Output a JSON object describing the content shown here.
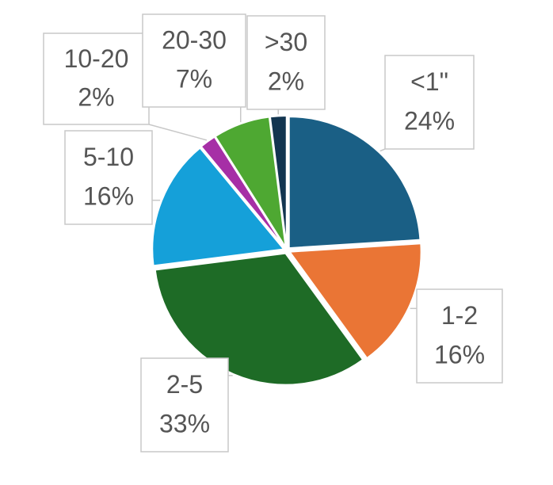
{
  "chart_data": {
    "type": "pie",
    "categories": [
      "<1\"",
      "1-2",
      "2-5",
      "5-10",
      "10-20",
      "20-30",
      ">30"
    ],
    "values": [
      24,
      16,
      33,
      16,
      2,
      7,
      2
    ],
    "value_labels": [
      "24%",
      "16%",
      "33%",
      "16%",
      "2%",
      "7%",
      "2%"
    ],
    "colors": [
      "#1a5f85",
      "#ea7535",
      "#1e6b26",
      "#15a0d9",
      "#a62fa6",
      "#4ea832",
      "#123550"
    ]
  }
}
